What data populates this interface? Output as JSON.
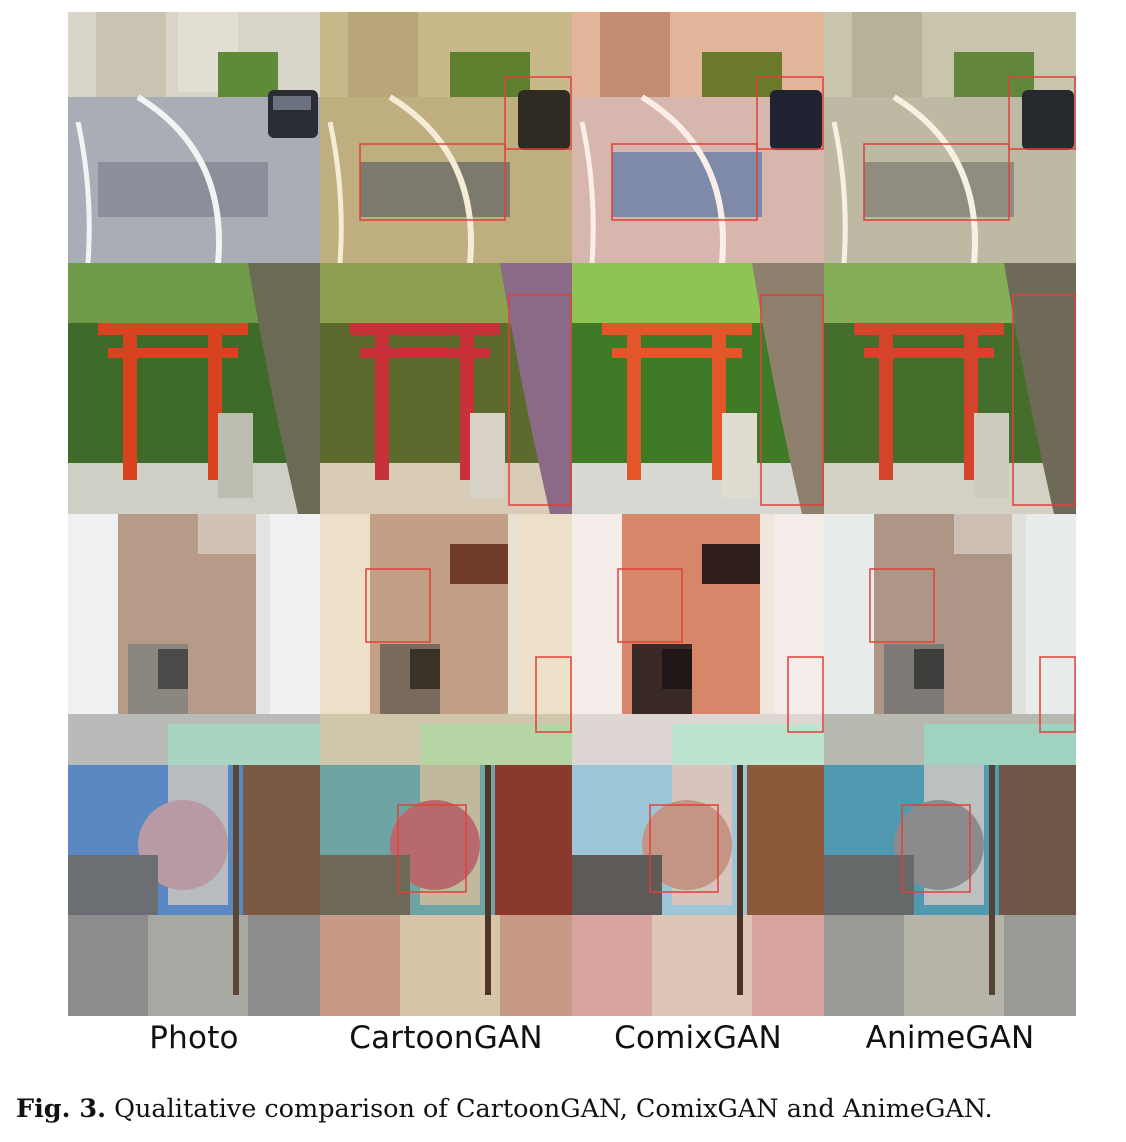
{
  "columns": [
    "Photo",
    "CartoonGAN",
    "ComixGAN",
    "AnimeGAN"
  ],
  "caption": {
    "label": "Fig. 3.",
    "text": " Qualitative comparison of CartoonGAN, ComixGAN and AnimeGAN."
  },
  "colors": {
    "highlight_box": "#e0403a"
  }
}
